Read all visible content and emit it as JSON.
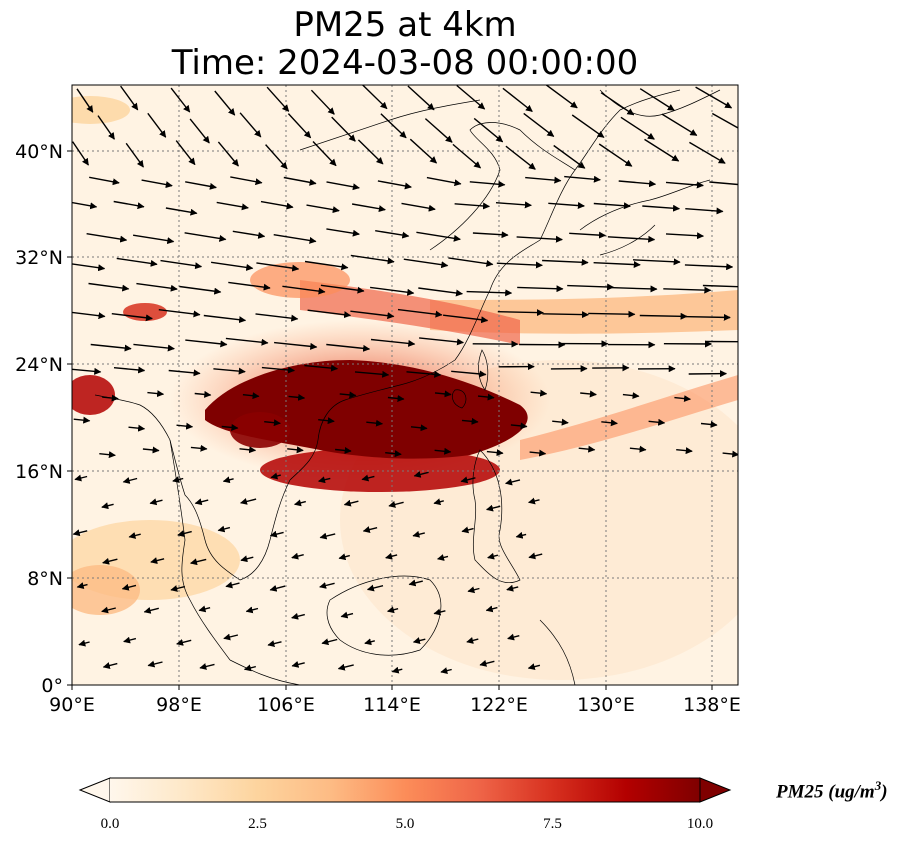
{
  "title": {
    "line1": "PM25 at 4km",
    "line2": "Time: 2024-03-08 00:00:00"
  },
  "map": {
    "lon_range": [
      90,
      140
    ],
    "lat_range": [
      0,
      43
    ],
    "lon_ticks": [
      90,
      98,
      106,
      114,
      122,
      130,
      138
    ],
    "lon_tick_labels": [
      "90°E",
      "98°E",
      "106°E",
      "114°E",
      "122°E",
      "130°E",
      "138°E"
    ],
    "lat_ticks": [
      0,
      8,
      16,
      24,
      32,
      40
    ],
    "lat_tick_labels": [
      "0°",
      "8°N",
      "16°N",
      "24°N",
      "32°N",
      "40°N"
    ],
    "gridlines": "dotted",
    "colormap": "OrRd",
    "high_plume": {
      "description_hidden": true,
      "core_lon": [
        103,
        124
      ],
      "core_lat": [
        16,
        23
      ],
      "value": ">10"
    }
  },
  "colorbar": {
    "ticks": [
      "0.0",
      "2.5",
      "5.0",
      "7.5",
      "10.0"
    ],
    "min": 0,
    "max": 10,
    "extend": "both",
    "label_main": "PM25 (ug/m",
    "label_sup": "3",
    "label_end": ")",
    "colors": [
      "#fff7ec",
      "#fee8c8",
      "#fdd49e",
      "#fdbb84",
      "#fc8d59",
      "#ef6548",
      "#d7301f",
      "#b30000",
      "#7f0000"
    ]
  }
}
